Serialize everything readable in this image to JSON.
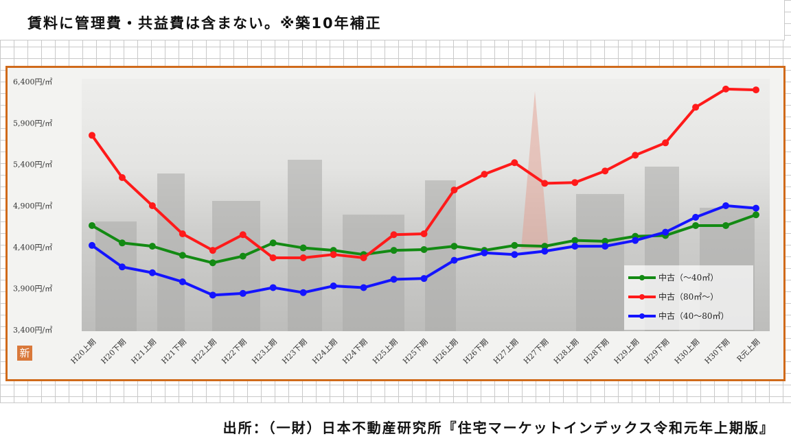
{
  "header": {
    "title": "賃料に管理費・共益費は含まない。※築10年補正"
  },
  "footer": {
    "source": "出所：（一財）日本不動産研究所『住宅マーケットインデックス令和元年上期版』"
  },
  "logo": {
    "text": "新"
  },
  "chart_data": {
    "type": "line",
    "categories": [
      "H20上期",
      "H20下期",
      "H21上期",
      "H21下期",
      "H22上期",
      "H22下期",
      "H23上期",
      "H23下期",
      "H24上期",
      "H24下期",
      "H25上期",
      "H25下期",
      "H26上期",
      "H26下期",
      "H27上期",
      "H27下期",
      "H28上期",
      "H28下期",
      "H29上期",
      "H29下期",
      "H30上期",
      "H30下期",
      "R元上期"
    ],
    "y_tick_labels": [
      "3,400円/㎡",
      "3,900円/㎡",
      "4,400円/㎡",
      "4,900円/㎡",
      "5,400円/㎡",
      "5,900円/㎡",
      "6,400円/㎡"
    ],
    "ylim": [
      3400,
      6400
    ],
    "series": [
      {
        "name": "中古（〜40㎡）",
        "color": "#138a13",
        "values": [
          4660,
          4450,
          4410,
          4300,
          4210,
          4290,
          4450,
          4390,
          4360,
          4310,
          4360,
          4370,
          4410,
          4360,
          4420,
          4410,
          4480,
          4470,
          4530,
          4540,
          4660,
          4660,
          4790
        ]
      },
      {
        "name": "中古（80㎡〜）",
        "color": "#ff1a1a",
        "values": [
          5750,
          5240,
          4900,
          4560,
          4360,
          4550,
          4270,
          4270,
          4310,
          4270,
          4550,
          4560,
          5090,
          5280,
          5420,
          5170,
          5180,
          5320,
          5510,
          5660,
          6090,
          6310,
          6300
        ]
      },
      {
        "name": "中古（40〜80㎡）",
        "color": "#1414ff",
        "values": [
          4420,
          4160,
          4090,
          3980,
          3820,
          3840,
          3910,
          3850,
          3930,
          3910,
          4010,
          4020,
          4240,
          4330,
          4310,
          4350,
          4410,
          4410,
          4480,
          4580,
          4760,
          4900,
          4870
        ]
      }
    ],
    "legend_position": "bottom-right",
    "grid": false
  }
}
